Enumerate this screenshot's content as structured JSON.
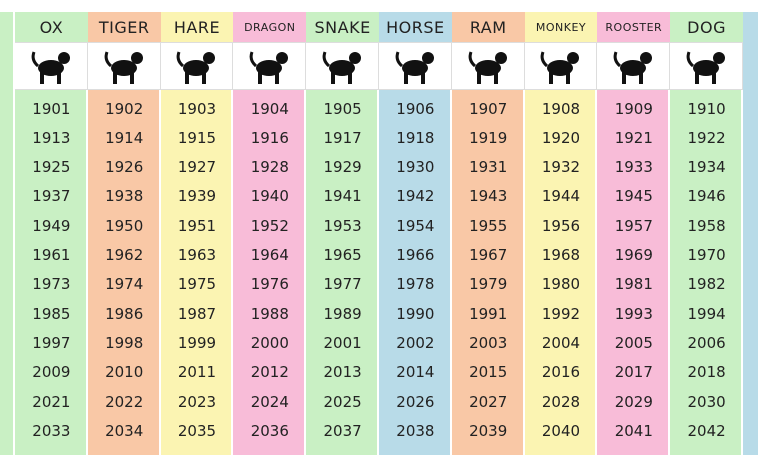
{
  "columns": [
    {
      "name": "OX",
      "color": "#c9f0c4",
      "years": [
        1901,
        1913,
        1925,
        1937,
        1949,
        1961,
        1973,
        1985,
        1997,
        2009,
        2021,
        2033
      ]
    },
    {
      "name": "TIGER",
      "color": "#f9c8a6",
      "years": [
        1902,
        1914,
        1926,
        1938,
        1950,
        1962,
        1974,
        1986,
        1998,
        2010,
        2022,
        2034
      ]
    },
    {
      "name": "HARE",
      "color": "#fbf4b2",
      "years": [
        1903,
        1915,
        1927,
        1939,
        1951,
        1963,
        1975,
        1987,
        1999,
        2011,
        2023,
        2035
      ]
    },
    {
      "name": "DRAGON",
      "color": "#f8bcd8",
      "years": [
        1904,
        1916,
        1928,
        1940,
        1952,
        1964,
        1976,
        1988,
        2000,
        2012,
        2024,
        2036
      ]
    },
    {
      "name": "SNAKE",
      "color": "#c9f0c4",
      "years": [
        1905,
        1917,
        1929,
        1941,
        1953,
        1965,
        1977,
        1989,
        2001,
        2013,
        2025,
        2037
      ]
    },
    {
      "name": "HORSE",
      "color": "#b8dbe8",
      "years": [
        1906,
        1918,
        1930,
        1942,
        1954,
        1966,
        1978,
        1990,
        2002,
        2014,
        2026,
        2038
      ]
    },
    {
      "name": "RAM",
      "color": "#f9c8a6",
      "years": [
        1907,
        1919,
        1931,
        1943,
        1955,
        1967,
        1979,
        1991,
        2003,
        2015,
        2027,
        2039
      ]
    },
    {
      "name": "MONKEY",
      "color": "#fbf4b2",
      "years": [
        1908,
        1920,
        1932,
        1944,
        1956,
        1968,
        1980,
        1992,
        2004,
        2016,
        2028,
        2040
      ]
    },
    {
      "name": "ROOSTER",
      "color": "#f8bcd8",
      "years": [
        1909,
        1921,
        1933,
        1945,
        1957,
        1969,
        1981,
        1993,
        2005,
        2017,
        2029,
        2041
      ]
    },
    {
      "name": "DOG",
      "color": "#c9f0c4",
      "years": [
        1910,
        1922,
        1934,
        1946,
        1958,
        1970,
        1982,
        1994,
        2006,
        2018,
        2030,
        2042
      ]
    }
  ]
}
